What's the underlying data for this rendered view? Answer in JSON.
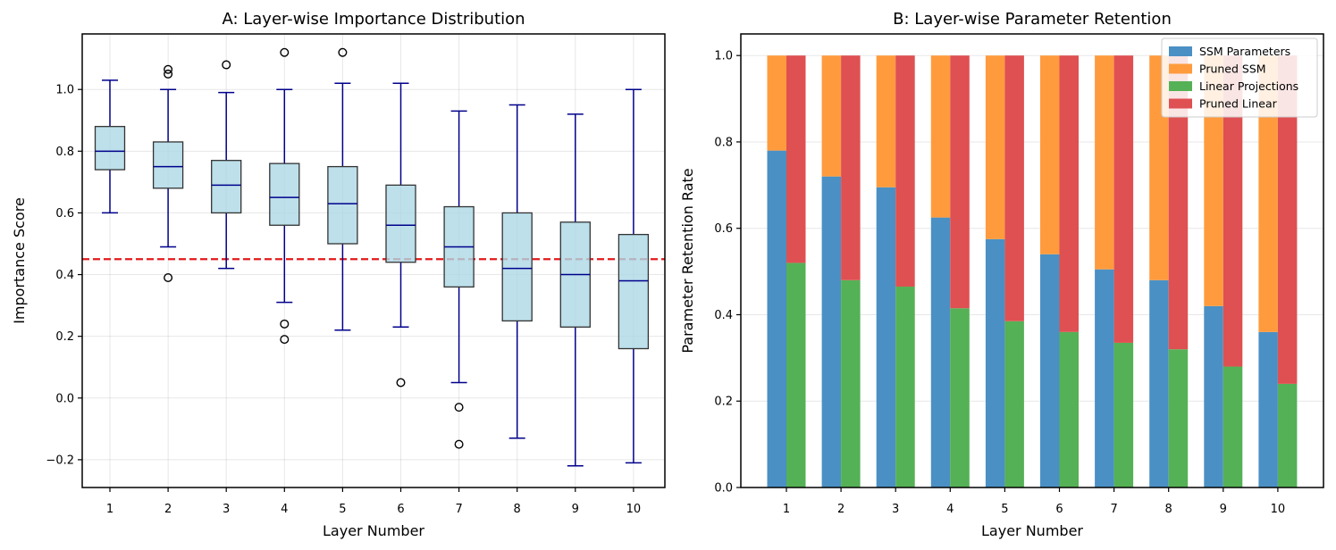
{
  "chart_data": [
    {
      "type": "box",
      "title": "A: Layer-wise Importance Distribution",
      "xlabel": "Layer Number",
      "ylabel": "Importance Score",
      "ylim": [
        -0.29,
        1.18
      ],
      "yticks": [
        -0.2,
        0.0,
        0.2,
        0.4,
        0.6,
        0.8,
        1.0
      ],
      "ytick_labels": [
        "−0.2",
        "0.0",
        "0.2",
        "0.4",
        "0.6",
        "0.8",
        "1.0"
      ],
      "categories": [
        "1",
        "2",
        "3",
        "4",
        "5",
        "6",
        "7",
        "8",
        "9",
        "10"
      ],
      "threshold": 0.45,
      "threshold_color": "#e31a1c",
      "box_fill": "#add8e6",
      "whisker_color": "#00008b",
      "median_color": "#00008b",
      "boxes": [
        {
          "q1": 0.74,
          "median": 0.8,
          "q3": 0.88,
          "whisker_low": 0.6,
          "whisker_high": 1.03,
          "outliers": []
        },
        {
          "q1": 0.68,
          "median": 0.75,
          "q3": 0.83,
          "whisker_low": 0.49,
          "whisker_high": 1.0,
          "outliers": [
            0.39,
            1.05,
            1.065
          ]
        },
        {
          "q1": 0.6,
          "median": 0.69,
          "q3": 0.77,
          "whisker_low": 0.42,
          "whisker_high": 0.99,
          "outliers": [
            1.08
          ]
        },
        {
          "q1": 0.56,
          "median": 0.65,
          "q3": 0.76,
          "whisker_low": 0.31,
          "whisker_high": 1.0,
          "outliers": [
            0.19,
            0.24,
            1.12
          ]
        },
        {
          "q1": 0.5,
          "median": 0.63,
          "q3": 0.75,
          "whisker_low": 0.22,
          "whisker_high": 1.02,
          "outliers": [
            1.12
          ]
        },
        {
          "q1": 0.44,
          "median": 0.56,
          "q3": 0.69,
          "whisker_low": 0.23,
          "whisker_high": 1.02,
          "outliers": [
            0.05
          ]
        },
        {
          "q1": 0.36,
          "median": 0.49,
          "q3": 0.62,
          "whisker_low": 0.05,
          "whisker_high": 0.93,
          "outliers": [
            -0.03,
            -0.15
          ]
        },
        {
          "q1": 0.25,
          "median": 0.42,
          "q3": 0.6,
          "whisker_low": -0.13,
          "whisker_high": 0.95,
          "outliers": []
        },
        {
          "q1": 0.23,
          "median": 0.4,
          "q3": 0.57,
          "whisker_low": -0.22,
          "whisker_high": 0.92,
          "outliers": []
        },
        {
          "q1": 0.16,
          "median": 0.38,
          "q3": 0.53,
          "whisker_low": -0.21,
          "whisker_high": 1.0,
          "outliers": []
        }
      ]
    },
    {
      "type": "bar",
      "stacked": true,
      "title": "B: Layer-wise Parameter Retention",
      "xlabel": "Layer Number",
      "ylabel": "Parameter Retention Rate",
      "ylim": [
        0.0,
        1.05
      ],
      "yticks": [
        0.0,
        0.2,
        0.4,
        0.6,
        0.8,
        1.0
      ],
      "ytick_labels": [
        "0.0",
        "0.2",
        "0.4",
        "0.6",
        "0.8",
        "1.0"
      ],
      "categories": [
        "1",
        "2",
        "3",
        "4",
        "5",
        "6",
        "7",
        "8",
        "9",
        "10"
      ],
      "series": [
        {
          "name": "SSM Parameters",
          "group": "ssm",
          "color": "#4a90c4",
          "values": [
            0.78,
            0.72,
            0.695,
            0.625,
            0.575,
            0.54,
            0.505,
            0.48,
            0.42,
            0.36
          ]
        },
        {
          "name": "Pruned SSM",
          "group": "ssm",
          "color": "#ff9b3d",
          "values": [
            0.22,
            0.28,
            0.305,
            0.375,
            0.425,
            0.46,
            0.495,
            0.52,
            0.58,
            0.64
          ]
        },
        {
          "name": "Linear Projections",
          "group": "linear",
          "color": "#55b155",
          "values": [
            0.52,
            0.48,
            0.465,
            0.415,
            0.385,
            0.36,
            0.335,
            0.32,
            0.28,
            0.24
          ]
        },
        {
          "name": "Pruned Linear",
          "group": "linear",
          "color": "#df5052",
          "values": [
            0.48,
            0.52,
            0.535,
            0.585,
            0.615,
            0.64,
            0.665,
            0.68,
            0.72,
            0.76
          ]
        }
      ],
      "legend": "top-right"
    }
  ]
}
